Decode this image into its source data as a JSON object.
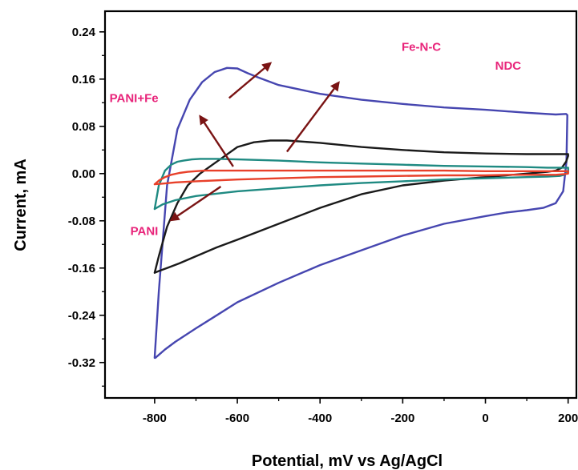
{
  "chart_data": {
    "type": "line",
    "xlabel": "Potential, mV vs Ag/AgCl",
    "ylabel": "Current, mA",
    "xlim": [
      -920,
      220
    ],
    "ylim": [
      -0.38,
      0.275
    ],
    "x_ticks": [
      -800,
      -600,
      -400,
      -200,
      0,
      200
    ],
    "x_tick_labels": [
      "-800",
      "-600",
      "-400",
      "-200",
      "0",
      "200"
    ],
    "y_ticks": [
      0.24,
      0.16,
      0.08,
      0.0,
      -0.08,
      -0.16,
      -0.24,
      -0.32
    ],
    "y_tick_labels": [
      "0.24",
      "0.16",
      "0.08",
      "0.00",
      "-0.08",
      "-0.16",
      "-0.24",
      "-0.32"
    ],
    "grid": false,
    "annotation_color": "#e8247a",
    "arrow_color": "#7a1414",
    "series": [
      {
        "name": "Fe-N-C",
        "color": "#4646b0",
        "x": [
          -800,
          -790,
          -770,
          -745,
          -715,
          -685,
          -655,
          -625,
          -600,
          -575,
          -550,
          -500,
          -400,
          -300,
          -200,
          -100,
          0,
          100,
          170,
          195,
          198,
          196,
          188,
          170,
          140,
          100,
          50,
          0,
          -100,
          -200,
          -300,
          -400,
          -500,
          -600,
          -650,
          -700,
          -750,
          -775,
          -790,
          -798,
          -800
        ],
        "y": [
          -0.312,
          -0.2,
          -0.02,
          0.075,
          0.125,
          0.155,
          0.172,
          0.179,
          0.178,
          0.17,
          0.163,
          0.15,
          0.135,
          0.125,
          0.118,
          0.112,
          0.108,
          0.103,
          0.1,
          0.101,
          0.099,
          0.02,
          -0.03,
          -0.05,
          -0.058,
          -0.062,
          -0.066,
          -0.072,
          -0.085,
          -0.105,
          -0.13,
          -0.155,
          -0.185,
          -0.218,
          -0.24,
          -0.262,
          -0.285,
          -0.298,
          -0.307,
          -0.312,
          -0.312
        ]
      },
      {
        "name": "NDC",
        "color": "#1a1a1a",
        "x": [
          -800,
          -790,
          -770,
          -745,
          -720,
          -690,
          -660,
          -630,
          -600,
          -560,
          -520,
          -480,
          -400,
          -300,
          -200,
          -100,
          0,
          100,
          150,
          190,
          200,
          200,
          195,
          185,
          170,
          150,
          100,
          50,
          0,
          -100,
          -200,
          -300,
          -400,
          -500,
          -600,
          -650,
          -700,
          -740,
          -770,
          -790,
          -800
        ],
        "y": [
          -0.168,
          -0.14,
          -0.09,
          -0.05,
          -0.02,
          0.0,
          0.015,
          0.03,
          0.045,
          0.053,
          0.056,
          0.056,
          0.052,
          0.045,
          0.04,
          0.036,
          0.034,
          0.033,
          0.033,
          0.033,
          0.033,
          0.03,
          0.02,
          0.01,
          0.005,
          0.003,
          0.0,
          -0.003,
          -0.006,
          -0.012,
          -0.02,
          -0.035,
          -0.058,
          -0.085,
          -0.112,
          -0.125,
          -0.14,
          -0.152,
          -0.16,
          -0.165,
          -0.168
        ]
      },
      {
        "name": "PANI+Fe",
        "color": "#1f8a82",
        "x": [
          -800,
          -790,
          -775,
          -760,
          -745,
          -730,
          -710,
          -690,
          -650,
          -600,
          -500,
          -400,
          -300,
          -200,
          -100,
          0,
          100,
          150,
          180,
          200,
          200,
          190,
          180,
          150,
          100,
          0,
          -100,
          -200,
          -300,
          -400,
          -500,
          -600,
          -700,
          -750,
          -780,
          -800
        ],
        "y": [
          -0.06,
          -0.02,
          0.005,
          0.015,
          0.02,
          0.022,
          0.024,
          0.025,
          0.025,
          0.024,
          0.022,
          0.019,
          0.017,
          0.015,
          0.013,
          0.012,
          0.011,
          0.01,
          0.01,
          0.01,
          0.002,
          -0.002,
          -0.004,
          -0.005,
          -0.006,
          -0.008,
          -0.01,
          -0.013,
          -0.016,
          -0.02,
          -0.025,
          -0.03,
          -0.038,
          -0.045,
          -0.052,
          -0.06
        ]
      },
      {
        "name": "PANI",
        "color": "#e8402a",
        "x": [
          -800,
          -790,
          -775,
          -760,
          -740,
          -720,
          -700,
          -680,
          -650,
          -600,
          -500,
          -400,
          -300,
          -200,
          -100,
          0,
          100,
          150,
          180,
          200,
          200,
          190,
          170,
          130,
          100,
          50,
          0,
          -100,
          -200,
          -300,
          -400,
          -500,
          -600,
          -700,
          -750,
          -780,
          -800
        ],
        "y": [
          -0.018,
          -0.012,
          -0.006,
          -0.002,
          0.001,
          0.003,
          0.004,
          0.005,
          0.005,
          0.005,
          0.005,
          0.005,
          0.005,
          0.005,
          0.005,
          0.004,
          0.004,
          0.004,
          0.004,
          0.004,
          0.0,
          -0.001,
          -0.002,
          -0.002,
          -0.002,
          -0.002,
          -0.003,
          -0.003,
          -0.004,
          -0.005,
          -0.006,
          -0.008,
          -0.01,
          -0.013,
          -0.015,
          -0.017,
          -0.018
        ]
      }
    ],
    "annotations": [
      {
        "text": "Fe-N-C",
        "x": -155,
        "y": 0.208,
        "anchor": "middle",
        "arrow_from": [
          -620,
          0.128
        ],
        "arrow_to": [
          -520,
          0.187
        ]
      },
      {
        "text": "NDC",
        "x": 55,
        "y": 0.176,
        "anchor": "middle",
        "arrow_from": [
          -480,
          0.037
        ],
        "arrow_to": [
          -355,
          0.154
        ]
      },
      {
        "text": "PANI+Fe",
        "x": -850,
        "y": 0.121,
        "anchor": "middle",
        "arrow_from": [
          -610,
          0.012
        ],
        "arrow_to": [
          -690,
          0.097
        ]
      },
      {
        "text": "PANI",
        "x": -825,
        "y": -0.104,
        "anchor": "middle",
        "arrow_from": [
          -640,
          -0.022
        ],
        "arrow_to": [
          -760,
          -0.079
        ]
      }
    ]
  }
}
